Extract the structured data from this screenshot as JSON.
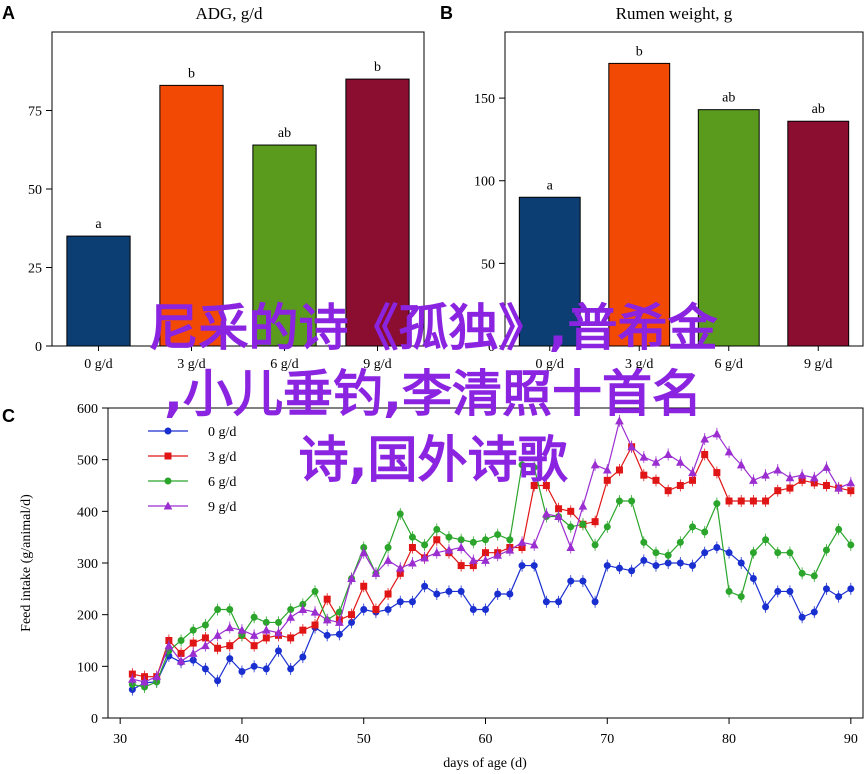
{
  "overlay": {
    "line1": "尼采的诗《孤独》,普希金",
    "line2": ",小儿垂钓,李清照十首名",
    "line3": "诗,国外诗歌",
    "color": "#8a24e0"
  },
  "chart_data": [
    {
      "panel": "A",
      "type": "bar",
      "title": "ADG, g/d",
      "categories": [
        "0 g/d",
        "3 g/d",
        "6 g/d",
        "9 g/d"
      ],
      "values": [
        35,
        83,
        64,
        85
      ],
      "letters": [
        "a",
        "b",
        "ab",
        "b"
      ],
      "colors": [
        "#0d3e73",
        "#f24a05",
        "#5a9a1c",
        "#8b0d30"
      ],
      "ylim": [
        0,
        100
      ],
      "yticks": [
        0,
        25,
        50,
        75
      ]
    },
    {
      "panel": "B",
      "type": "bar",
      "title": "Rumen weight, g",
      "categories": [
        "0 g/d",
        "3 g/d",
        "6 g/d",
        "9 g/d"
      ],
      "values": [
        90,
        171,
        143,
        136
      ],
      "letters": [
        "a",
        "b",
        "ab",
        "ab"
      ],
      "colors": [
        "#0d3e73",
        "#f24a05",
        "#5a9a1c",
        "#8b0d30"
      ],
      "ylim": [
        0,
        190
      ],
      "yticks": [
        0,
        50,
        100,
        150
      ]
    },
    {
      "panel": "C",
      "type": "line",
      "title": "",
      "xlabel": "days of age (d)",
      "ylabel": "Feed intake (g/animal/d)",
      "xlim": [
        29,
        91
      ],
      "ylim": [
        0,
        600
      ],
      "xticks": [
        30,
        40,
        50,
        60,
        70,
        80,
        90
      ],
      "yticks": [
        0,
        100,
        200,
        300,
        400,
        500,
        600
      ],
      "legend_position": "top-left",
      "x": [
        31,
        32,
        33,
        34,
        35,
        36,
        37,
        38,
        39,
        40,
        41,
        42,
        43,
        44,
        45,
        46,
        47,
        48,
        49,
        50,
        51,
        52,
        53,
        54,
        55,
        56,
        57,
        58,
        59,
        60,
        61,
        62,
        63,
        64,
        65,
        66,
        67,
        68,
        69,
        70,
        71,
        72,
        73,
        74,
        75,
        76,
        77,
        78,
        79,
        80,
        81,
        82,
        83,
        84,
        85,
        86,
        87,
        88,
        89,
        90
      ],
      "series": [
        {
          "name": "0 g/d",
          "color": "#1a2fd0",
          "marker": "circle",
          "values": [
            55,
            68,
            70,
            120,
            108,
            112,
            95,
            72,
            115,
            90,
            100,
            95,
            130,
            95,
            118,
            175,
            160,
            162,
            185,
            210,
            205,
            210,
            225,
            225,
            255,
            240,
            245,
            245,
            210,
            210,
            240,
            240,
            295,
            295,
            225,
            225,
            265,
            265,
            225,
            295,
            290,
            285,
            305,
            295,
            300,
            300,
            295,
            320,
            330,
            320,
            300,
            270,
            215,
            245,
            245,
            195,
            205,
            250,
            235,
            250
          ]
        },
        {
          "name": "3 g/d",
          "color": "#e01616",
          "marker": "square",
          "values": [
            85,
            80,
            80,
            150,
            125,
            145,
            155,
            135,
            140,
            160,
            140,
            155,
            160,
            155,
            170,
            180,
            230,
            190,
            200,
            255,
            210,
            240,
            280,
            330,
            310,
            345,
            320,
            295,
            295,
            320,
            320,
            330,
            330,
            450,
            450,
            405,
            400,
            375,
            380,
            460,
            480,
            525,
            470,
            460,
            440,
            450,
            460,
            510,
            475,
            420,
            420,
            420,
            420,
            440,
            445,
            460,
            455,
            450,
            445,
            440
          ]
        },
        {
          "name": "6 g/d",
          "color": "#2ba52b",
          "marker": "circle",
          "values": [
            65,
            60,
            70,
            130,
            150,
            170,
            180,
            210,
            210,
            160,
            195,
            185,
            185,
            210,
            220,
            245,
            190,
            205,
            270,
            330,
            280,
            330,
            395,
            350,
            335,
            365,
            350,
            345,
            340,
            345,
            355,
            345,
            490,
            485,
            390,
            390,
            370,
            375,
            335,
            370,
            420,
            420,
            340,
            320,
            315,
            340,
            370,
            360,
            415,
            245,
            235,
            320,
            345,
            320,
            320,
            280,
            275,
            325,
            365,
            335
          ]
        },
        {
          "name": "9 g/d",
          "color": "#9b2ed0",
          "marker": "triangle",
          "values": [
            75,
            70,
            80,
            140,
            110,
            125,
            140,
            160,
            175,
            170,
            160,
            170,
            165,
            195,
            210,
            205,
            190,
            185,
            270,
            320,
            280,
            305,
            290,
            300,
            310,
            320,
            325,
            330,
            305,
            305,
            315,
            325,
            340,
            335,
            395,
            390,
            330,
            410,
            490,
            480,
            575,
            525,
            505,
            495,
            510,
            495,
            475,
            540,
            550,
            515,
            490,
            460,
            470,
            480,
            465,
            470,
            465,
            485,
            445,
            455
          ]
        }
      ]
    }
  ]
}
